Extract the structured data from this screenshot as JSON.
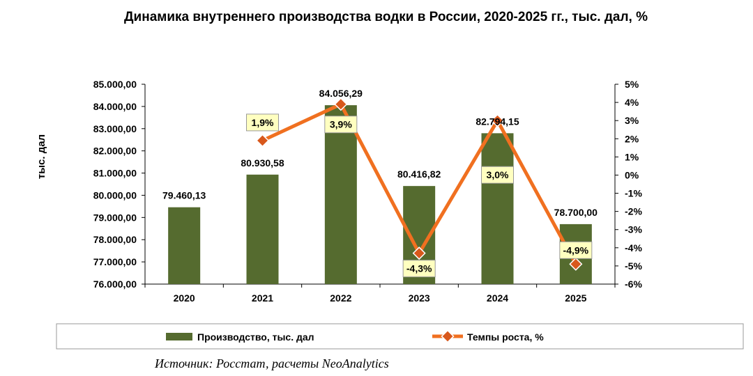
{
  "title": "Динамика внутреннего производства водки в России, 2020-2025 гг., тыс. дал, %",
  "source": "Источник: Росстат, расчеты NeoAnalytics",
  "colors": {
    "bars": "#556b2f",
    "line": "#f07020",
    "marker": "#d8581c",
    "label_box": "#ffffc0"
  },
  "chart_data": {
    "type": "bar",
    "categories": [
      "2020",
      "2021",
      "2022",
      "2023",
      "2024",
      "2025"
    ],
    "ylabel": "тыс. дал",
    "ylim": [
      76000,
      85000
    ],
    "y2lim": [
      -6,
      5
    ],
    "y_ticks": [
      "76.000,00",
      "77.000,00",
      "78.000,00",
      "79.000,00",
      "80.000,00",
      "81.000,00",
      "82.000,00",
      "83.000,00",
      "84.000,00",
      "85.000,00"
    ],
    "y2_ticks": [
      "-6%",
      "-5%",
      "-4%",
      "-3%",
      "-2%",
      "-1%",
      "0%",
      "1%",
      "2%",
      "3%",
      "4%",
      "5%"
    ],
    "legend_position": "bottom",
    "series": [
      {
        "name": "Производство, тыс. дал",
        "type": "bar",
        "axis": "left",
        "values": [
          79460.13,
          80930.58,
          84056.29,
          80416.82,
          82794.15,
          78700.0
        ],
        "labels": [
          "79.460,13",
          "80.930,58",
          "84.056,29",
          "80.416,82",
          "82.794,15",
          "78.700,00"
        ]
      },
      {
        "name": "Темпы роста, %",
        "type": "line",
        "axis": "right",
        "values": [
          null,
          1.9,
          3.9,
          -4.3,
          3.0,
          -4.9
        ],
        "labels": [
          "",
          "1,9%",
          "3,9%",
          "-4,3%",
          "3,0%",
          "-4,9%"
        ]
      }
    ]
  }
}
